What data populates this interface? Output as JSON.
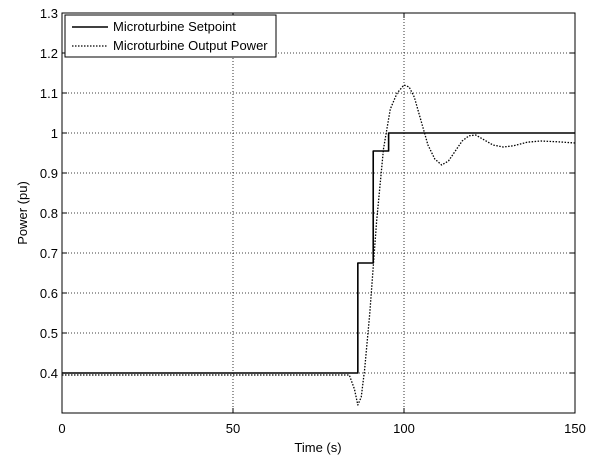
{
  "chart_data": {
    "type": "line",
    "title": "",
    "xlabel": "Time (s)",
    "ylabel": "Power (pu)",
    "xlim": [
      0,
      150
    ],
    "ylim": [
      0.3,
      1.3
    ],
    "xticks": [
      0,
      50,
      100,
      150
    ],
    "yticks": [
      0.4,
      0.5,
      0.6,
      0.7,
      0.8,
      0.9,
      1,
      1.1,
      1.2,
      1.3
    ],
    "xtick_labels": [
      "0",
      "50",
      "100",
      "150"
    ],
    "ytick_labels": [
      "0.4",
      "0.5",
      "0.6",
      "0.7",
      "0.8",
      "0.9",
      "1",
      "1.1",
      "1.2",
      "1.3"
    ],
    "grid": true,
    "legend_position": "top-left",
    "series": [
      {
        "name": "Microturbine Setpoint",
        "style": "solid",
        "color": "#000000",
        "x": [
          0,
          86.5,
          86.5,
          91,
          91,
          95.5,
          95.5,
          150
        ],
        "y": [
          0.4,
          0.4,
          0.675,
          0.675,
          0.955,
          0.955,
          1.0,
          1.0
        ]
      },
      {
        "name": "Microturbine Output Power",
        "style": "dotted",
        "color": "#000000",
        "x": [
          0,
          84,
          85.5,
          86.5,
          87.5,
          88.5,
          90,
          92,
          94,
          96,
          98,
          100,
          101.5,
          103,
          105,
          107,
          109,
          111,
          113,
          115,
          117,
          119,
          121,
          123,
          126,
          129,
          132,
          136,
          140,
          145,
          150
        ],
        "y": [
          0.395,
          0.395,
          0.36,
          0.32,
          0.34,
          0.41,
          0.55,
          0.78,
          0.96,
          1.06,
          1.1,
          1.12,
          1.115,
          1.09,
          1.03,
          0.97,
          0.935,
          0.92,
          0.93,
          0.955,
          0.98,
          0.993,
          0.995,
          0.985,
          0.97,
          0.965,
          0.968,
          0.977,
          0.98,
          0.978,
          0.975
        ]
      }
    ]
  }
}
